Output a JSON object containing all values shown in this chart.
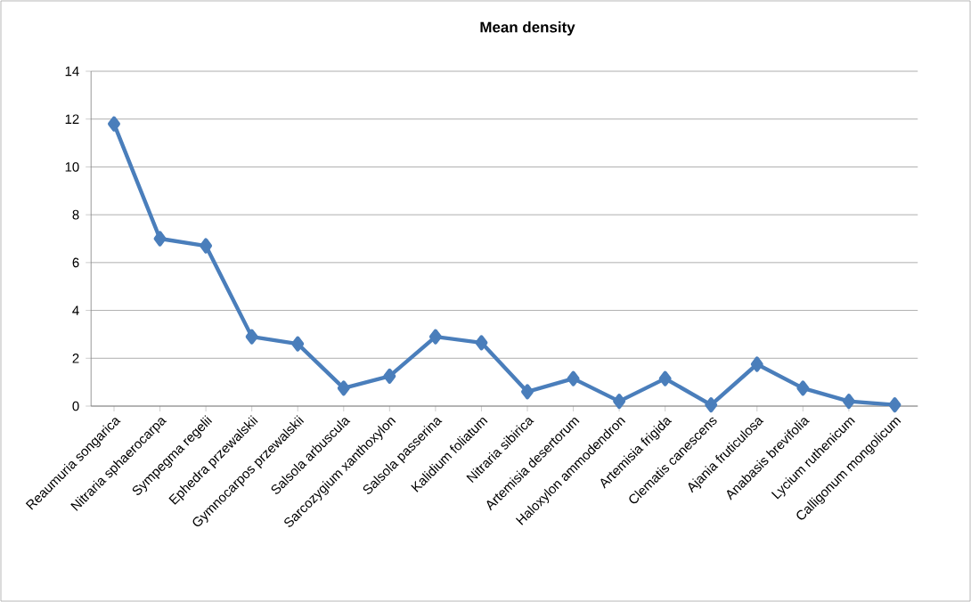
{
  "chart_data": {
    "type": "line",
    "title": "Mean density",
    "categories": [
      "Reaumuria songarica",
      "Nitraria sphaerocarpa",
      "Sympegma regelii",
      "Ephedra przewalskii",
      "Gymnocarpos przewalskii",
      "Salsola arbuscula",
      "Sarcozygium xanthoxylon",
      "Salsola passerina",
      "Kalidium foliatum",
      "Nitraria sibirica",
      "Artemisia desertorum",
      "Haloxylon ammodendron",
      "Artemisia frigida",
      "Clematis canescens",
      "Ajania fruticulosa",
      "Anabasis brevifolia",
      "Lycium ruthenicum",
      "Calligonum mongolicum"
    ],
    "values": [
      11.8,
      7.0,
      6.7,
      2.9,
      2.6,
      0.75,
      1.25,
      2.9,
      2.65,
      0.6,
      1.15,
      0.2,
      1.15,
      0.05,
      1.75,
      0.75,
      0.2,
      0.05
    ],
    "color": "#4a7ebb",
    "ylim": [
      0,
      14
    ],
    "yticks": [
      0,
      2,
      4,
      6,
      8,
      10,
      12,
      14
    ],
    "grid": "y",
    "marker": "diamond",
    "line_style": "solid"
  }
}
